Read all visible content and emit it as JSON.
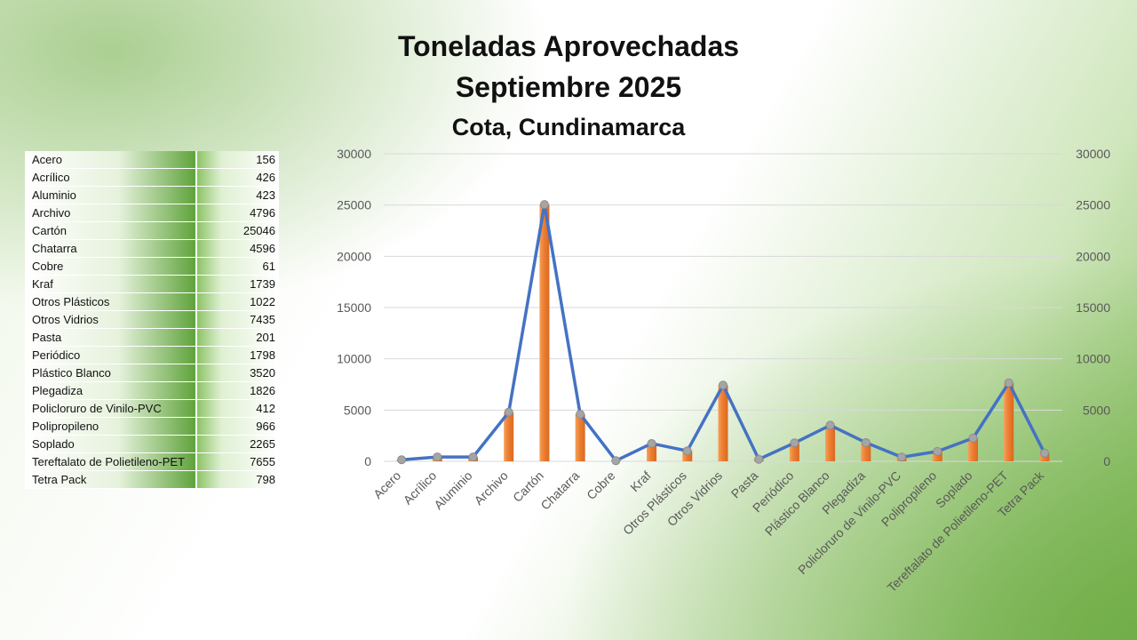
{
  "chart_data": {
    "type": "bar",
    "title": "Toneladas Aprovechadas",
    "subtitle": "Septiembre 2025",
    "subtitle2": "Cota, Cundinamarca",
    "categories": [
      "Acero",
      "Acrílico",
      "Aluminio",
      "Archivo",
      "Cartón",
      "Chatarra",
      "Cobre",
      "Kraf",
      "Otros Plásticos",
      "Otros Vidrios",
      "Pasta",
      "Periódico",
      "Plástico Blanco",
      "Plegadiza",
      "Policloruro de Vinilo-PVC",
      "Polipropileno",
      "Soplado",
      "Tereftalato de Polietileno-PET",
      "Tetra Pack"
    ],
    "values": [
      156,
      426,
      423,
      4796,
      25046,
      4596,
      61,
      1739,
      1022,
      7435,
      201,
      1798,
      3520,
      1826,
      412,
      966,
      2265,
      7655,
      798
    ],
    "overlay": "line with markers (same values)",
    "ylim": [
      0,
      30000
    ],
    "yticks": [
      "0",
      "5000",
      "10000",
      "15000",
      "20000",
      "25000",
      "30000"
    ],
    "y_axes": "left and right",
    "grid": true,
    "colors": {
      "bar": "#ED7D31",
      "line": "#4472C4",
      "marker": "#A5A5A5",
      "grid": "#D9D9D9"
    }
  }
}
